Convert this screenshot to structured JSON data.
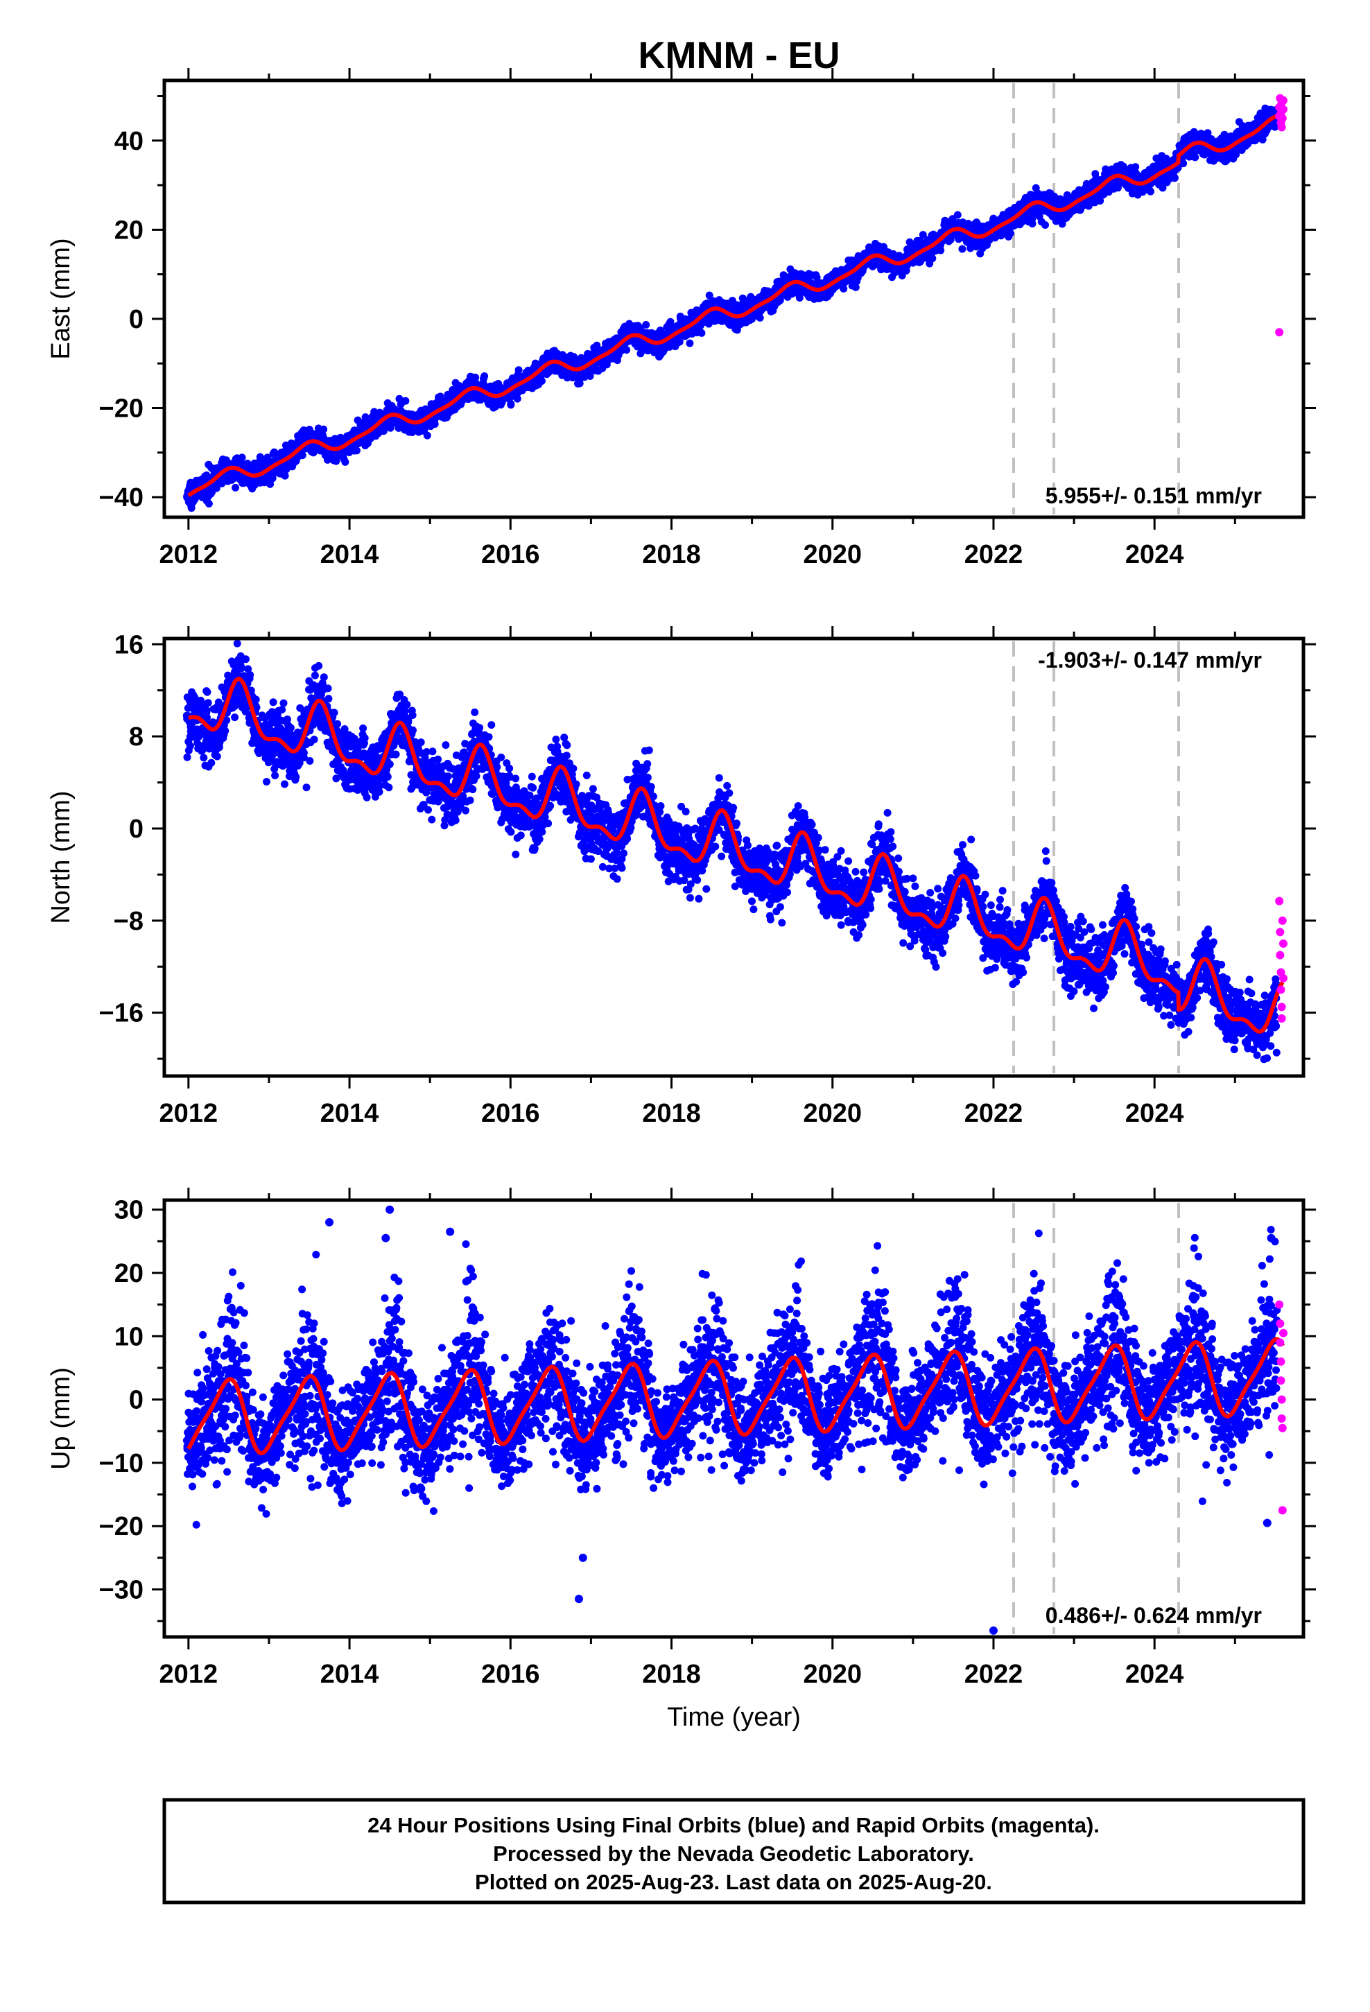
{
  "title": "KMNM - EU",
  "chart_data": [
    {
      "type": "scatter",
      "ylabel": "East (mm)",
      "xlabel": "",
      "xlim": [
        2011.7,
        2025.85
      ],
      "ylim": [
        -44.5,
        53.5
      ],
      "x_ticks": [
        2012,
        2014,
        2016,
        2018,
        2020,
        2022,
        2024
      ],
      "x_tick_labels": [
        "2012",
        "2014",
        "2016",
        "2018",
        "2020",
        "2022",
        "2024"
      ],
      "y_ticks": [
        -40,
        -20,
        0,
        20,
        40
      ],
      "y_tick_labels": [
        "−40",
        "−20",
        "0",
        "20",
        "40"
      ],
      "rate_label": "5.955+/- 0.151 mm/yr",
      "rate_position": "bottom-right",
      "breaks": [
        2022.25,
        2022.75,
        2024.3
      ],
      "model": {
        "offset": -38.5,
        "rate": 5.955,
        "annual_amp": 1.6,
        "annual_phase": 5.0,
        "semi_amp": 0.5,
        "semi_phase": 1.0,
        "steps": [
          [
            2024.3,
            1.5
          ]
        ]
      },
      "noise_sd": 1.3,
      "final_points_count": 4800,
      "rapid_points": [
        [
          2025.55,
          45.5
        ],
        [
          2025.55,
          47.5
        ],
        [
          2025.56,
          49.5
        ],
        [
          2025.57,
          44.0
        ],
        [
          2025.57,
          46.0
        ],
        [
          2025.58,
          48.5
        ],
        [
          2025.58,
          43.0
        ],
        [
          2025.59,
          45.0
        ],
        [
          2025.6,
          47.0
        ],
        [
          2025.6,
          49.0
        ],
        [
          2025.55,
          -3.0
        ]
      ],
      "series": [
        {
          "name": "Final Orbits",
          "color": "#0000ff"
        },
        {
          "name": "Rapid Orbits",
          "color": "#ff00ff"
        }
      ]
    },
    {
      "type": "scatter",
      "ylabel": "North (mm)",
      "xlabel": "",
      "xlim": [
        2011.7,
        2025.85
      ],
      "ylim": [
        -21.5,
        16.5
      ],
      "x_ticks": [
        2012,
        2014,
        2016,
        2018,
        2020,
        2022,
        2024
      ],
      "x_tick_labels": [
        "2012",
        "2014",
        "2016",
        "2018",
        "2020",
        "2022",
        "2024"
      ],
      "y_ticks": [
        -16,
        -8,
        0,
        8,
        16
      ],
      "y_tick_labels": [
        "−16",
        "−8",
        "0",
        "8",
        "16"
      ],
      "rate_label": "-1.903+/- 0.147 mm/yr",
      "rate_position": "top-right",
      "breaks": [
        2022.25,
        2022.75,
        2024.3
      ],
      "model": {
        "offset": 11.0,
        "rate": -1.903,
        "annual_amp": 2.2,
        "annual_phase": 3.8,
        "semi_amp": 1.0,
        "semi_phase": 0.0,
        "steps": [
          [
            2024.3,
            -1.5
          ]
        ]
      },
      "noise_sd": 1.3,
      "final_points_count": 4800,
      "rapid_points": [
        [
          2025.55,
          -6.3
        ],
        [
          2025.56,
          -9.0
        ],
        [
          2025.56,
          -11.0
        ],
        [
          2025.57,
          -12.5
        ],
        [
          2025.57,
          -14.0
        ],
        [
          2025.58,
          -15.5
        ],
        [
          2025.58,
          -16.5
        ],
        [
          2025.59,
          -8.0
        ],
        [
          2025.6,
          -10.0
        ],
        [
          2025.6,
          -13.0
        ]
      ],
      "series": [
        {
          "name": "Final Orbits",
          "color": "#0000ff"
        },
        {
          "name": "Rapid Orbits",
          "color": "#ff00ff"
        }
      ]
    },
    {
      "type": "scatter",
      "ylabel": "Up (mm)",
      "xlabel": "Time (year)",
      "xlim": [
        2011.7,
        2025.85
      ],
      "ylim": [
        -37.5,
        31.5
      ],
      "x_ticks": [
        2012,
        2014,
        2016,
        2018,
        2020,
        2022,
        2024
      ],
      "x_tick_labels": [
        "2012",
        "2014",
        "2016",
        "2018",
        "2020",
        "2022",
        "2024"
      ],
      "y_ticks": [
        -30,
        -20,
        -10,
        0,
        10,
        20,
        30
      ],
      "y_tick_labels": [
        "−30",
        "−20",
        "−10",
        "0",
        "10",
        "20",
        "30"
      ],
      "rate_label": "0.486+/- 0.624 mm/yr",
      "rate_position": "bottom-right",
      "breaks": [
        2022.25,
        2022.75,
        2024.3
      ],
      "model": {
        "offset": -3.0,
        "rate": 0.486,
        "annual_amp": 5.5,
        "annual_phase": 4.95,
        "semi_amp": 1.2,
        "semi_phase": 0.5,
        "steps": []
      },
      "noise_sd": 4.0,
      "final_points_count": 4800,
      "outliers": [
        [
          2013.75,
          28.0
        ],
        [
          2014.5,
          30.0
        ],
        [
          2015.25,
          26.5
        ],
        [
          2016.85,
          -31.5
        ],
        [
          2016.9,
          -25.0
        ],
        [
          2022.0,
          -36.5
        ],
        [
          2014.45,
          25.5
        ],
        [
          2025.45,
          25.5
        ],
        [
          2025.4,
          -19.5
        ]
      ],
      "rapid_points": [
        [
          2025.55,
          15.0
        ],
        [
          2025.56,
          12.0
        ],
        [
          2025.56,
          9.0
        ],
        [
          2025.57,
          6.0
        ],
        [
          2025.57,
          3.0
        ],
        [
          2025.58,
          0.0
        ],
        [
          2025.58,
          -3.0
        ],
        [
          2025.59,
          -4.5
        ],
        [
          2025.59,
          -17.5
        ],
        [
          2025.6,
          10.5
        ]
      ],
      "series": [
        {
          "name": "Final Orbits",
          "color": "#0000ff"
        },
        {
          "name": "Rapid Orbits",
          "color": "#ff00ff"
        }
      ]
    }
  ],
  "colors": {
    "final": "#0000ff",
    "rapid": "#ff00ff",
    "model": "#ff0000",
    "break_lines": "#c0c0c0",
    "frame": "#000000"
  },
  "footer": {
    "line1": "24 Hour Positions Using Final Orbits (blue) and Rapid Orbits (magenta).",
    "line2": "Processed by the Nevada Geodetic Laboratory.",
    "line3": "Plotted on 2025-Aug-23. Last data on 2025-Aug-20."
  }
}
